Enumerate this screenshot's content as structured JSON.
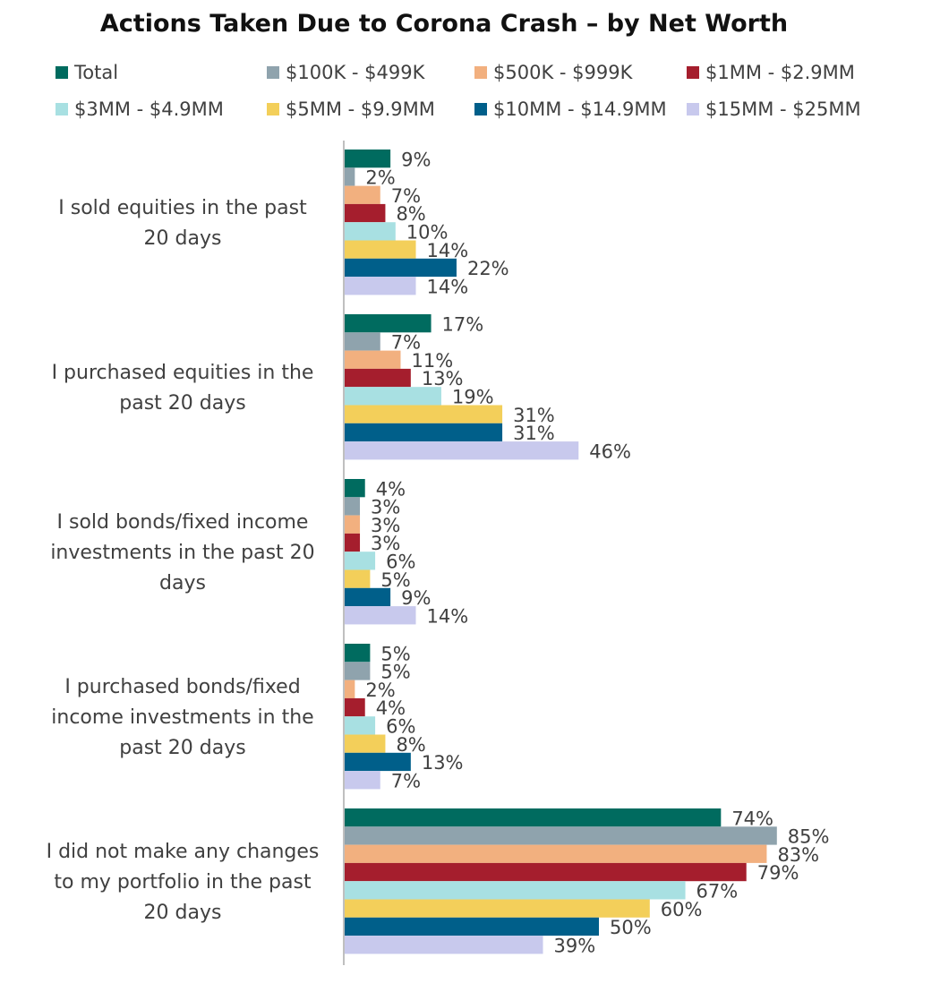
{
  "chart_data": {
    "type": "bar",
    "orientation": "horizontal",
    "title": "Actions Taken Due to Corona Crash – by Net Worth",
    "xlabel": "",
    "ylabel": "",
    "value_suffix": "%",
    "xlim": [
      0,
      85
    ],
    "grid": false,
    "legend_position": "top",
    "categories": [
      [
        "I sold equities in the past",
        "20 days"
      ],
      [
        "I purchased equities in the",
        "past 20 days"
      ],
      [
        "I sold bonds/fixed income",
        "investments in the past 20",
        "days"
      ],
      [
        "I purchased bonds/fixed",
        "income investments in the",
        "past 20 days"
      ],
      [
        "I did not make any changes",
        "to my portfolio in the past",
        "20 days"
      ]
    ],
    "series": [
      {
        "name": "Total",
        "color": "#006b5f",
        "values": [
          9,
          17,
          4,
          5,
          74
        ]
      },
      {
        "name": "$100K - $499K",
        "color": "#8fa3ad",
        "values": [
          2,
          7,
          3,
          5,
          85
        ]
      },
      {
        "name": "$500K - $999K",
        "color": "#f2b07f",
        "values": [
          7,
          11,
          3,
          2,
          83
        ]
      },
      {
        "name": "$1MM - $2.9MM",
        "color": "#a51e2d",
        "values": [
          8,
          13,
          3,
          4,
          79
        ]
      },
      {
        "name": "$3MM - $4.9MM",
        "color": "#a8e0e2",
        "values": [
          10,
          19,
          6,
          6,
          67
        ]
      },
      {
        "name": "$5MM - $9.9MM",
        "color": "#f3cf5a",
        "values": [
          14,
          31,
          5,
          8,
          60
        ]
      },
      {
        "name": "$10MM - $14.9MM",
        "color": "#005f8a",
        "values": [
          22,
          31,
          9,
          13,
          50
        ]
      },
      {
        "name": "$15MM - $25MM",
        "color": "#c8c9ed",
        "values": [
          14,
          46,
          14,
          7,
          39
        ]
      }
    ]
  }
}
